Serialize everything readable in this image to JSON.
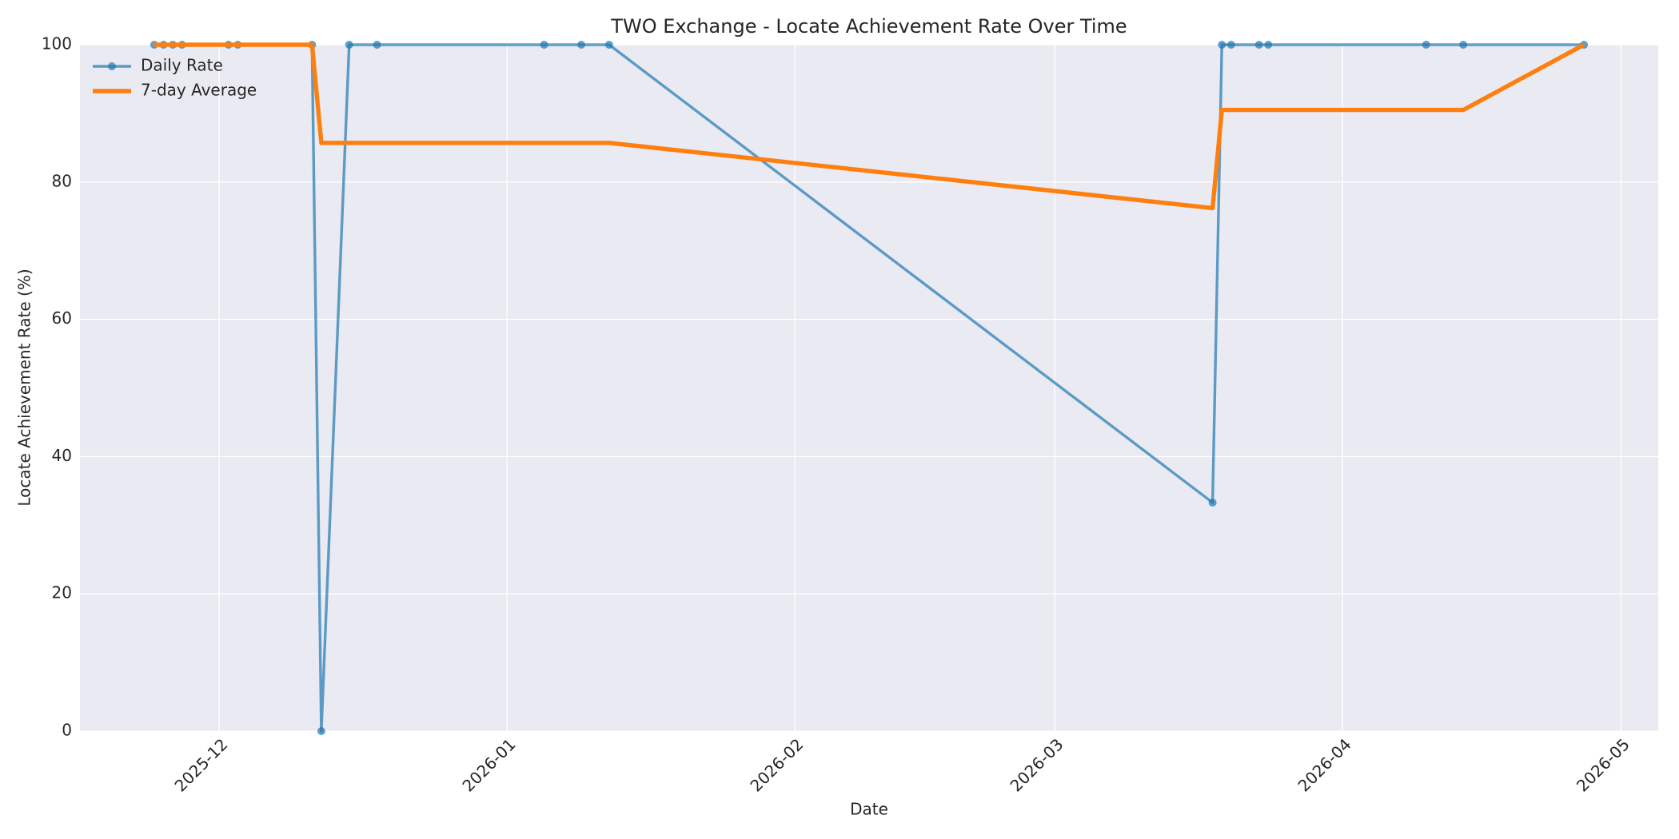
{
  "chart_data": {
    "type": "line",
    "title": "TWO Exchange - Locate Achievement Rate Over Time",
    "xlabel": "Date",
    "ylabel": "Locate Achievement Rate (%)",
    "x": [
      "2025-11-24",
      "2025-11-25",
      "2025-11-26",
      "2025-11-27",
      "2025-12-02",
      "2025-12-03",
      "2025-12-11",
      "2025-12-12",
      "2025-12-15",
      "2025-12-18",
      "2026-01-05",
      "2026-01-09",
      "2026-01-12",
      "2026-03-18",
      "2026-03-19",
      "2026-03-20",
      "2026-03-23",
      "2026-03-24",
      "2026-04-10",
      "2026-04-14",
      "2026-04-27"
    ],
    "series": [
      {
        "name": "Daily Rate",
        "color": "#1f77b4",
        "marker": true,
        "values": [
          100,
          100,
          100,
          100,
          100,
          100,
          100,
          0,
          100,
          100,
          100,
          100,
          100,
          33.3,
          100,
          100,
          100,
          100,
          100,
          100,
          100
        ]
      },
      {
        "name": "7-day Average",
        "color": "#ff7f0e",
        "marker": false,
        "values": [
          100,
          100,
          100,
          100,
          100,
          100,
          100,
          85.7,
          85.7,
          85.7,
          85.7,
          85.7,
          85.7,
          76.2,
          90.5,
          90.5,
          90.5,
          90.5,
          90.5,
          90.5,
          100
        ]
      }
    ],
    "xlim": [
      "2025-11-16",
      "2026-05-05"
    ],
    "xticks": [
      "2025-12",
      "2026-01",
      "2026-02",
      "2026-03",
      "2026-04",
      "2026-05"
    ],
    "ylim": [
      0,
      100
    ],
    "yticks": [
      0,
      20,
      40,
      60,
      80,
      100
    ],
    "grid": true,
    "legend": "upper left"
  }
}
